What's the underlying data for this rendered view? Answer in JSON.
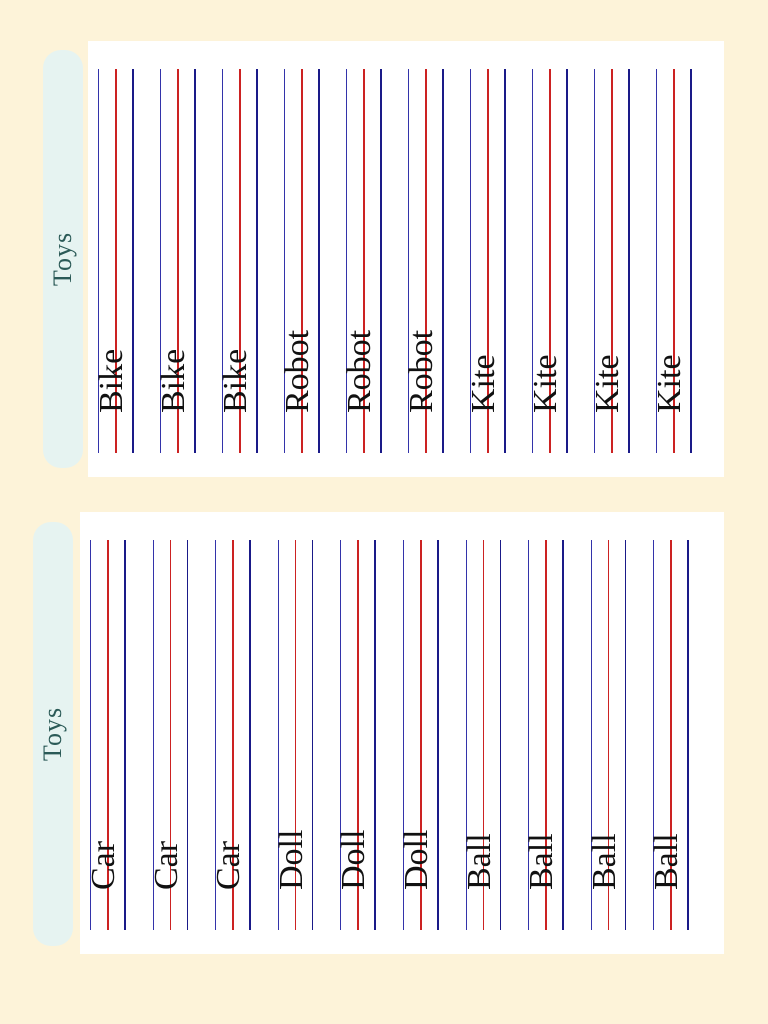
{
  "sections": [
    {
      "tab_label": "Toys",
      "words": [
        "Bike",
        "Bike",
        "Bike",
        "Robot",
        "Robot",
        "Robot",
        "Kite",
        "Kite",
        "Kite",
        "Kite"
      ]
    },
    {
      "tab_label": "Toys",
      "words": [
        "Car",
        "Car",
        "Car",
        "Doll",
        "Doll",
        "Doll",
        "Ball",
        "Ball",
        "Ball",
        "Ball"
      ]
    }
  ],
  "colors": {
    "background": "#fdf3d9",
    "tab": "#e6f3f1",
    "guide_top": "#3333aa",
    "guide_mid": "#cc2222",
    "guide_bottom": "#1a1a88"
  }
}
